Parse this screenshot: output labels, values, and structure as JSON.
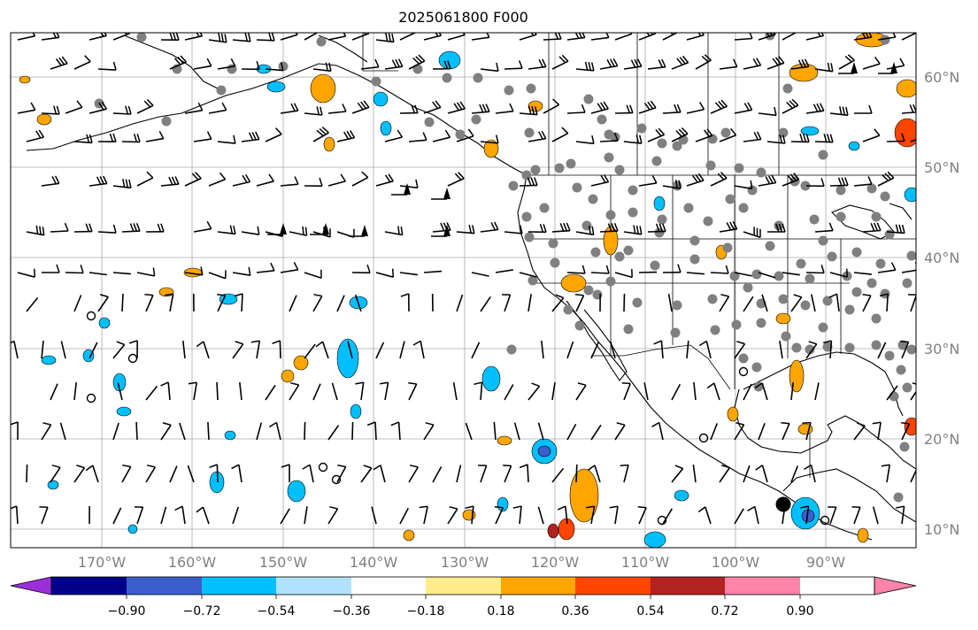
{
  "title": "2025061800 F000",
  "lat_labels": [
    "60°N",
    "50°N",
    "40°N",
    "30°N",
    "20°N",
    "10°N"
  ],
  "lon_labels": [
    "170°W",
    "160°W",
    "150°W",
    "140°W",
    "130°W",
    "120°W",
    "110°W",
    "100°W",
    "90°W"
  ],
  "colorbar": {
    "ticks": [
      "−0.90",
      "−0.72",
      "−0.54",
      "−0.36",
      "−0.18",
      "0.18",
      "0.36",
      "0.54",
      "0.72",
      "0.90"
    ],
    "colors": [
      "#9b30d9",
      "#00008b",
      "#3a5fcd",
      "#00bfff",
      "#b0e2ff",
      "#ffffff",
      "#ffec8b",
      "#ffa500",
      "#ff4500",
      "#b22222",
      "#ff83aa"
    ]
  },
  "icons": {
    "wind_barb": "wind-barb-icon",
    "station": "station-dot-icon",
    "calm": "calm-circle-icon"
  }
}
